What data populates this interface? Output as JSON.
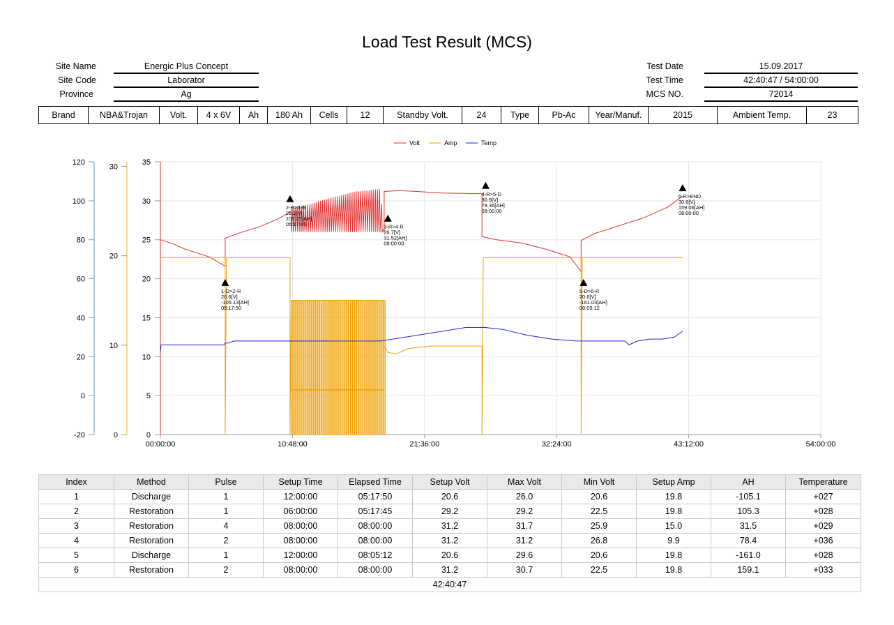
{
  "report": {
    "title": "Load Test Result (MCS)"
  },
  "info": {
    "site_name_label": "Site Name",
    "site_name": "Energic Plus Concept",
    "site_code_label": "Site Code",
    "site_code": "Laborator",
    "province_label": "Province",
    "province": "Ag",
    "test_date_label": "Test Date",
    "test_date": "15.09.2017",
    "test_time_label": "Test Time",
    "test_time": "42:40:47 / 54:00:00",
    "mcs_no_label": "MCS NO.",
    "mcs_no": "72014"
  },
  "specs": [
    "Brand",
    "NBA&Trojan",
    "Volt.",
    "4 x 6V",
    "Ah",
    "180 Ah",
    "Cells",
    "12",
    "Standby Volt.",
    "24",
    "Type",
    "Pb-Ac",
    "Year/Manuf.",
    "2015",
    "Ambient Temp.",
    "23"
  ],
  "chart_data": {
    "type": "line",
    "legend": [
      "Volt",
      "Amp",
      "Temp"
    ],
    "legend_position": "top-center",
    "colors": {
      "Volt": "#e03030",
      "Amp": "#f0a000",
      "Temp": "#2020d0"
    },
    "grid": true,
    "x_ticks": [
      "00:00:00",
      "10:48:00",
      "21:36:00",
      "32:24:00",
      "43:12:00",
      "54:00:00"
    ],
    "xlim_hours": [
      0,
      54
    ],
    "axes": {
      "temp": {
        "ticks": [
          -20,
          0,
          20,
          40,
          60,
          80,
          100,
          120
        ],
        "ylim": [
          -20,
          120
        ]
      },
      "amp": {
        "ticks": [
          0,
          10,
          20,
          30
        ],
        "ylim": [
          0,
          30.5
        ]
      },
      "volt": {
        "ticks": [
          0,
          5,
          10,
          15,
          20,
          25,
          30,
          35
        ],
        "ylim": [
          0,
          35
        ]
      }
    },
    "series": [
      {
        "name": "Volt",
        "axis": "volt",
        "x": [
          0,
          1,
          2,
          3,
          4,
          5.3,
          5.3,
          6.5,
          8,
          9.5,
          10.7,
          10.7,
          12,
          14,
          16,
          18,
          18.3,
          18.3,
          19.5,
          21,
          23,
          26.3,
          26.3,
          27.5,
          29.5,
          31.5,
          33.5,
          34.4,
          34.4,
          35.5,
          37.5,
          39.5,
          41.5,
          42.7
        ],
        "y": [
          25.0,
          24.5,
          23.8,
          23.3,
          22.8,
          21.6,
          25.2,
          25.9,
          26.6,
          27.6,
          28.6,
          29.2,
          29.5,
          30.4,
          31.2,
          31.5,
          25.9,
          31.2,
          31.3,
          31.2,
          31.0,
          30.9,
          25.4,
          25.0,
          24.6,
          23.8,
          22.8,
          20.9,
          24.9,
          25.8,
          26.8,
          27.8,
          29.2,
          30.6
        ],
        "oscillation": {
          "from": 10.7,
          "to": 18.3,
          "min": 26.0,
          "pulses": 44
        }
      },
      {
        "name": "Amp",
        "axis": "amp",
        "x": [
          0,
          5.3,
          5.3,
          5.4,
          10.6,
          10.6,
          10.7,
          18.3,
          18.3,
          18.6,
          19.3,
          20.2,
          22,
          24,
          26.3,
          26.3,
          26.4,
          34.4,
          34.4,
          34.5,
          42.7
        ],
        "y": [
          19.8,
          19.8,
          0,
          19.8,
          19.8,
          0,
          15.0,
          15.0,
          9.9,
          9.2,
          9.0,
          9.6,
          9.9,
          9.9,
          9.9,
          0,
          19.8,
          19.8,
          0,
          19.8,
          19.8
        ],
        "pulse_bands": [
          {
            "from": 10.7,
            "to": 18.3,
            "high": 15.0,
            "mid": 5.0,
            "low": 0,
            "pulses": 44
          }
        ]
      },
      {
        "name": "Temp",
        "axis": "temp",
        "x": [
          0,
          0.05,
          5.2,
          5.3,
          5.6,
          6,
          8,
          10,
          12,
          14,
          16,
          18,
          19,
          21,
          23,
          25,
          26.5,
          28,
          30,
          32,
          34,
          35,
          37,
          38,
          38.3,
          39,
          40,
          41,
          42,
          42.7
        ],
        "y": [
          22,
          26,
          26,
          27,
          27,
          28,
          28,
          28,
          28,
          28,
          28,
          28,
          29,
          31,
          33,
          35,
          35,
          34,
          31,
          29,
          28,
          28,
          28,
          28,
          26,
          28,
          29,
          29,
          30,
          33
        ]
      }
    ],
    "annotations": [
      {
        "label": "1-D>2-R",
        "lines": [
          "20.6[V]",
          "-105.13[AH]",
          "05:17:50"
        ],
        "x": 5.3,
        "y": 20.6,
        "axis": "volt"
      },
      {
        "label": "2-R>3-R",
        "lines": [
          "29.2[V]",
          "105.27[AH]",
          "05:17:45"
        ],
        "x": 10.6,
        "y": 29.2,
        "axis": "volt"
      },
      {
        "label": "3-R>4-R",
        "lines": [
          "26.7[V]",
          "31.52[AH]",
          "08:00:00"
        ],
        "x": 18.6,
        "y": 26.7,
        "axis": "volt"
      },
      {
        "label": "4-R>5-D",
        "lines": [
          "30.9[V]",
          "78.36[AH]",
          "08:00:00"
        ],
        "x": 26.6,
        "y": 30.9,
        "axis": "volt"
      },
      {
        "label": "5-D>6-R",
        "lines": [
          "20.6[V]",
          "-161.03[AH]",
          "08:05:12"
        ],
        "x": 34.6,
        "y": 20.6,
        "axis": "volt"
      },
      {
        "label": "6-R>END",
        "lines": [
          "30.6[V]",
          "159.06[AH]",
          "08:00:00"
        ],
        "x": 42.7,
        "y": 30.6,
        "axis": "volt"
      }
    ]
  },
  "results": {
    "headers": [
      "Index",
      "Method",
      "Pulse",
      "Setup Time",
      "Elapsed Time",
      "Setup Volt",
      "Max Volt",
      "Min Volt",
      "Setup Amp",
      "AH",
      "Temperature"
    ],
    "rows": [
      [
        "1",
        "Discharge",
        "1",
        "12:00:00",
        "05:17:50",
        "20.6",
        "26.0",
        "20.6",
        "19.8",
        "-105.1",
        "+027"
      ],
      [
        "2",
        "Restoration",
        "1",
        "06:00:00",
        "05:17:45",
        "29.2",
        "29.2",
        "22.5",
        "19.8",
        "105.3",
        "+028"
      ],
      [
        "3",
        "Restoration",
        "4",
        "08:00:00",
        "08:00:00",
        "31.2",
        "31.7",
        "25.9",
        "15.0",
        "31.5",
        "+029"
      ],
      [
        "4",
        "Restoration",
        "2",
        "08:00:00",
        "08:00:00",
        "31.2",
        "31.2",
        "26.8",
        "9.9",
        "78.4",
        "+036"
      ],
      [
        "5",
        "Discharge",
        "1",
        "12:00:00",
        "08:05:12",
        "20.6",
        "29.6",
        "20.6",
        "19.8",
        "-161.0",
        "+028"
      ],
      [
        "6",
        "Restoration",
        "2",
        "08:00:00",
        "08:00:00",
        "31.2",
        "30.7",
        "22.5",
        "19.8",
        "159.1",
        "+033"
      ]
    ],
    "total": "42:40:47"
  }
}
